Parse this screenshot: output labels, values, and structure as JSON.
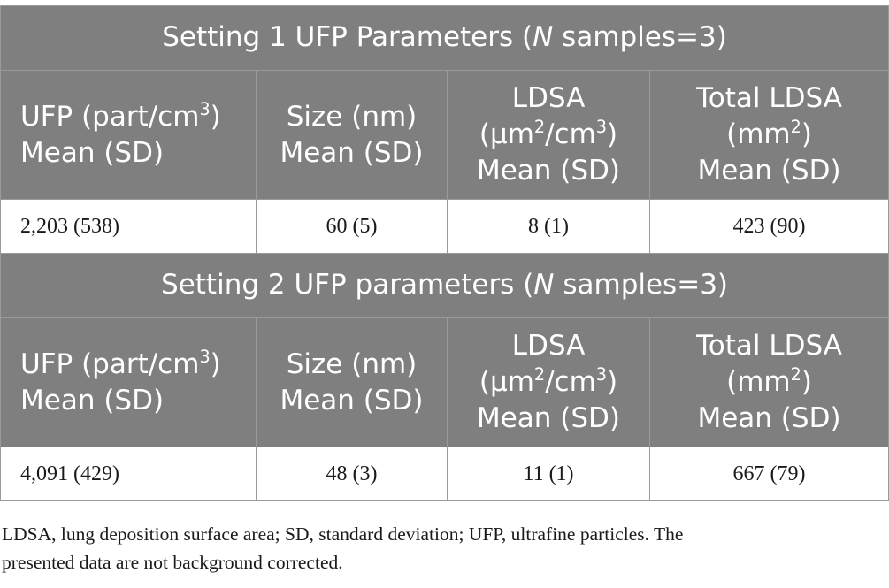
{
  "sections": [
    {
      "title": "Setting 1 UFP Parameters (",
      "title_n": "N",
      "title_end": " samples=3)",
      "headers": [
        {
          "l1": "UFP (part/cm",
          "sup": "3",
          "l1_end": ")",
          "l2": "Mean (SD)"
        },
        {
          "l1": "Size (nm)",
          "l2": "Mean (SD)"
        },
        {
          "l1": "LDSA",
          "l2a": "(µm",
          "sup1": "2",
          "l2b": "/cm",
          "sup2": "3",
          "l2c": ")",
          "l3": "Mean (SD)"
        },
        {
          "l1": "Total LDSA",
          "l2a": "(mm",
          "sup": "2",
          "l2b": ")",
          "l3": "Mean (SD)"
        }
      ],
      "values": [
        "2,203 (538)",
        "60 (5)",
        "8 (1)",
        "423 (90)"
      ]
    },
    {
      "title": "Setting 2 UFP parameters (",
      "title_n": "N",
      "title_end": " samples=3)",
      "headers": [
        {
          "l1": "UFP (part/cm",
          "sup": "3",
          "l1_end": ")",
          "l2": "Mean (SD)"
        },
        {
          "l1": "Size (nm)",
          "l2": "Mean (SD)"
        },
        {
          "l1": "LDSA",
          "l2a": "(µm",
          "sup1": "2",
          "l2b": "/cm",
          "sup2": "3",
          "l2c": ")",
          "l3": "Mean (SD)"
        },
        {
          "l1": "Total LDSA",
          "l2a": "(mm",
          "sup": "2",
          "l2b": ")",
          "l3": "Mean (SD)"
        }
      ],
      "values": [
        "4,091 (429)",
        "48 (3)",
        "11 (1)",
        "667 (79)"
      ]
    }
  ],
  "footnote": {
    "line1": "LDSA, lung deposition surface area; SD, standard deviation; UFP, ultrafine particles. The",
    "line2": "presented data are not background corrected."
  }
}
